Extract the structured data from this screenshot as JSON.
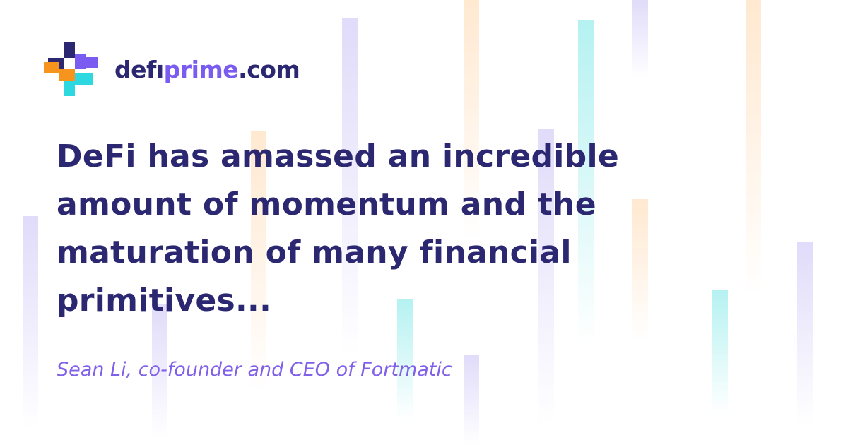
{
  "brand": {
    "name_prefix": "defı",
    "name_accent": "prime",
    "name_suffix": ".com",
    "colors": {
      "navy": "#2b2770",
      "purple": "#7b5cf0",
      "orange": "#f7941d",
      "teal": "#2ed8e0"
    }
  },
  "quote": {
    "text": "DeFi has amassed an incredible amount of momentum and the maturation of many financial primitives...",
    "author": "Sean Li, co-founder and CEO of Fortmatic"
  }
}
